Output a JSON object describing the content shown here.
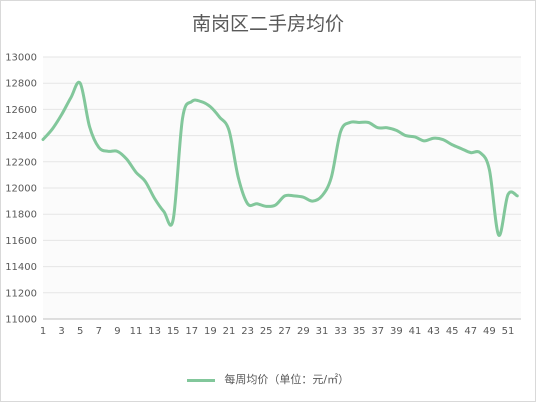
{
  "chart_data": {
    "type": "line",
    "title": "南岗区二手房均价",
    "xlabel": "",
    "ylabel": "",
    "ylim": [
      11000,
      13000
    ],
    "ytick_step": 200,
    "x_tick_labels": [
      "1",
      "3",
      "5",
      "7",
      "9",
      "11",
      "13",
      "15",
      "17",
      "19",
      "21",
      "23",
      "25",
      "27",
      "29",
      "31",
      "33",
      "35",
      "37",
      "39",
      "41",
      "43",
      "45",
      "47",
      "49",
      "51"
    ],
    "grid": true,
    "legend_position": "bottom",
    "color": "#82c79b",
    "series": [
      {
        "name": "每周均价（单位：元/㎡）",
        "x": [
          1,
          2,
          3,
          4,
          5,
          6,
          7,
          8,
          9,
          10,
          11,
          12,
          13,
          14,
          15,
          16,
          17,
          18,
          19,
          20,
          21,
          22,
          23,
          24,
          25,
          26,
          27,
          28,
          29,
          30,
          31,
          32,
          33,
          34,
          35,
          36,
          37,
          38,
          39,
          40,
          41,
          42,
          43,
          44,
          45,
          46,
          47,
          48,
          49,
          50,
          51,
          52
        ],
        "values": [
          12370,
          12450,
          12560,
          12690,
          12800,
          12470,
          12310,
          12280,
          12280,
          12220,
          12120,
          12050,
          11920,
          11820,
          11760,
          12530,
          12660,
          12660,
          12620,
          12540,
          12440,
          12080,
          11880,
          11880,
          11860,
          11870,
          11940,
          11940,
          11930,
          11900,
          11940,
          12080,
          12430,
          12500,
          12500,
          12500,
          12460,
          12460,
          12440,
          12400,
          12390,
          12360,
          12380,
          12370,
          12330,
          12300,
          12270,
          12270,
          12140,
          11640,
          11950,
          11940
        ]
      }
    ]
  }
}
